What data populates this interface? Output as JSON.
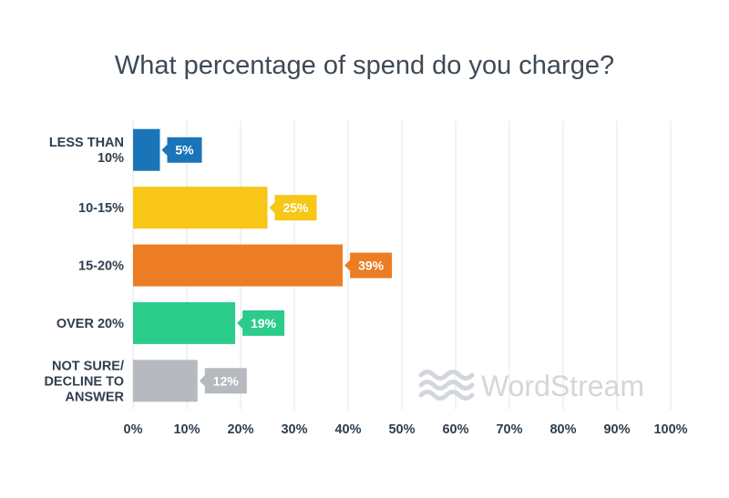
{
  "chart_data": {
    "type": "bar",
    "orientation": "horizontal",
    "title": "What percentage of spend do you charge?",
    "xlabel": "",
    "ylabel": "",
    "categories": [
      {
        "lines": [
          "LESS THAN",
          "10%"
        ],
        "value": 5,
        "label": "5%",
        "color": "#1a75b8"
      },
      {
        "lines": [
          "10-15%"
        ],
        "value": 25,
        "label": "25%",
        "color": "#f8c617"
      },
      {
        "lines": [
          "15-20%"
        ],
        "value": 39,
        "label": "39%",
        "color": "#ec7d24"
      },
      {
        "lines": [
          "OVER 20%"
        ],
        "value": 19,
        "label": "19%",
        "color": "#2bcc8a"
      },
      {
        "lines": [
          "NOT SURE/",
          "DECLINE TO",
          "ANSWER"
        ],
        "value": 12,
        "label": "12%",
        "color": "#b6b9bd"
      }
    ],
    "xlim": [
      0,
      100
    ],
    "ticks": [
      "0%",
      "10%",
      "20%",
      "30%",
      "40%",
      "50%",
      "60%",
      "70%",
      "80%",
      "90%",
      "100%"
    ],
    "grid": true,
    "legend": "none"
  },
  "watermark": {
    "text": "WordStream",
    "icon": "wordstream-waves-icon",
    "color": "#d3d6da"
  }
}
